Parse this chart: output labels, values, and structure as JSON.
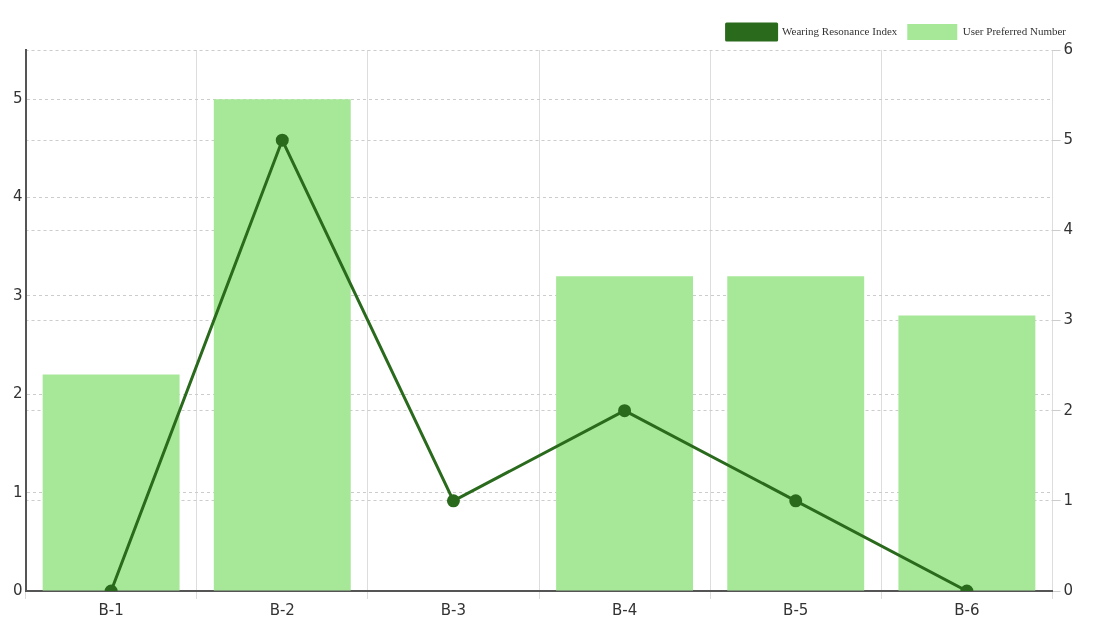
{
  "chart_data": {
    "type": "bar",
    "categories": [
      "B-1",
      "B-2",
      "B-3",
      "B-4",
      "B-5",
      "B-6"
    ],
    "series": [
      {
        "name": "Wearing Resonance Index",
        "type": "line",
        "axis": "y2",
        "color": "#2a6a1c",
        "values": [
          0,
          5,
          1,
          2,
          1,
          0
        ]
      },
      {
        "name": "User Preferred Number",
        "color": "#a6e898",
        "values": [
          2.2,
          5,
          0,
          3.2,
          3.2,
          2.8
        ]
      }
    ],
    "ylim": [
      0,
      5.5
    ],
    "yticks": [
      0,
      1,
      2,
      3,
      4,
      5
    ],
    "y2lim": [
      0,
      6
    ],
    "y2ticks": [
      0,
      1,
      2,
      3,
      4,
      5,
      6
    ],
    "grid": true,
    "legend": "top right",
    "marker": "circle",
    "line_style": "solid"
  }
}
